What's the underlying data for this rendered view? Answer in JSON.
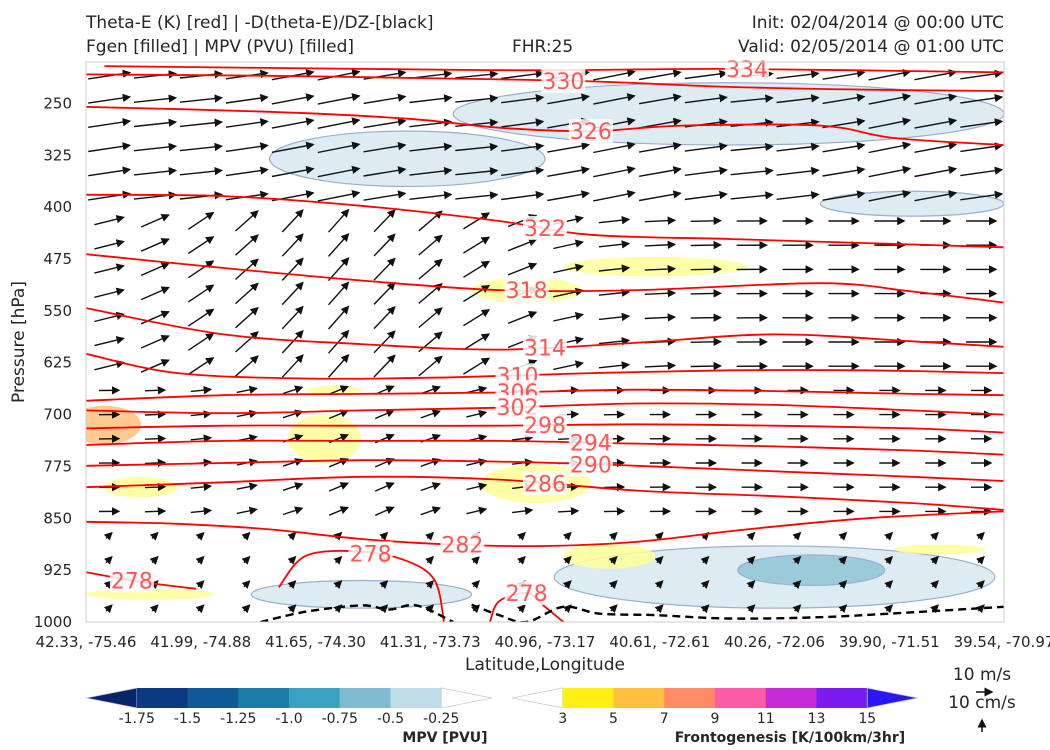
{
  "header": {
    "title_left_1": "Theta-E (K) [red] | -D(theta-E)/DZ-[black]",
    "title_left_2": "Fgen [filled] | MPV (PVU) [filled]",
    "fhr": "FHR:25",
    "init": "Init: 02/04/2014 @ 00:00 UTC",
    "valid": "Valid: 02/05/2014 @ 01:00 UTC"
  },
  "wind_key": {
    "horizontal": "10 m/s",
    "vertical": "10 cm/s"
  },
  "colorbars": {
    "mpv": {
      "title": "MPV [PVU]",
      "ticks": [
        "-1.75",
        "-1.5",
        "-1.25",
        "-1.0",
        "-0.75",
        "-0.5",
        "-0.25"
      ],
      "colors": [
        "#08246b",
        "#0b3a82",
        "#0f5a94",
        "#1b7da6",
        "#3ba1c0",
        "#7fbcd2",
        "#bfdde7",
        "#ffffff"
      ]
    },
    "fgen": {
      "title": "Frontogenesis [K/100km/3hr]",
      "ticks": [
        "3",
        "5",
        "7",
        "9",
        "11",
        "13",
        "15"
      ],
      "colors": [
        "#ffffff",
        "#ffef14",
        "#ffbf3f",
        "#ff8c66",
        "#ff5aa8",
        "#c52bd6",
        "#7a1cf0",
        "#2a17f5"
      ]
    }
  },
  "chart_data": {
    "type": "cross-section",
    "xlabel": "Latitude,Longitude",
    "ylabel": "Pressure [hPa]",
    "x_ticks": [
      "42.33, -75.46",
      "41.99, -74.88",
      "41.65, -74.30",
      "41.31, -73.73",
      "40.96, -73.17",
      "40.61, -72.61",
      "40.26, -72.06",
      "39.90, -71.51",
      "39.54, -70.97"
    ],
    "y_ticks": [
      250,
      325,
      400,
      475,
      550,
      625,
      700,
      775,
      850,
      925,
      1000
    ],
    "ylim": [
      1000,
      190
    ],
    "theta_e_contours": [
      {
        "level": 334,
        "label": "334",
        "label_x": 0.72,
        "points": [
          [
            0.02,
            196
          ],
          [
            0.3,
            200
          ],
          [
            0.5,
            202
          ],
          [
            0.7,
            200
          ],
          [
            1.0,
            205
          ]
        ]
      },
      {
        "level": 330,
        "label": "330",
        "label_x": 0.52,
        "points": [
          [
            0.0,
            208
          ],
          [
            0.2,
            210
          ],
          [
            0.4,
            214
          ],
          [
            0.55,
            218
          ],
          [
            0.7,
            226
          ],
          [
            0.85,
            230
          ],
          [
            1.0,
            232
          ]
        ]
      },
      {
        "level": 326,
        "label": "326",
        "label_x": 0.55,
        "points": [
          [
            0.0,
            255
          ],
          [
            0.2,
            262
          ],
          [
            0.35,
            272
          ],
          [
            0.45,
            285
          ],
          [
            0.55,
            290
          ],
          [
            0.65,
            282
          ],
          [
            0.8,
            282
          ],
          [
            0.88,
            300
          ],
          [
            1.0,
            310
          ]
        ]
      },
      {
        "level": 322,
        "label": "322",
        "label_x": 0.5,
        "points": [
          [
            0.0,
            382
          ],
          [
            0.15,
            384
          ],
          [
            0.3,
            398
          ],
          [
            0.45,
            420
          ],
          [
            0.55,
            440
          ],
          [
            0.7,
            446
          ],
          [
            0.85,
            452
          ],
          [
            1.0,
            458
          ]
        ]
      },
      {
        "level": 318,
        "label": "318",
        "label_x": 0.48,
        "points": [
          [
            0.0,
            468
          ],
          [
            0.15,
            488
          ],
          [
            0.3,
            506
          ],
          [
            0.45,
            520
          ],
          [
            0.6,
            520
          ],
          [
            0.8,
            510
          ],
          [
            0.9,
            522
          ],
          [
            1.0,
            538
          ]
        ]
      },
      {
        "level": 314,
        "label": "314",
        "label_x": 0.5,
        "points": [
          [
            0.0,
            546
          ],
          [
            0.15,
            584
          ],
          [
            0.3,
            598
          ],
          [
            0.45,
            606
          ],
          [
            0.6,
            596
          ],
          [
            0.75,
            584
          ],
          [
            0.9,
            594
          ],
          [
            1.0,
            602
          ]
        ]
      },
      {
        "level": 310,
        "label": "310",
        "label_x": 0.47,
        "points": [
          [
            0.0,
            612
          ],
          [
            0.1,
            640
          ],
          [
            0.25,
            648
          ],
          [
            0.4,
            646
          ],
          [
            0.55,
            640
          ],
          [
            0.7,
            636
          ],
          [
            0.85,
            636
          ],
          [
            1.0,
            640
          ]
        ]
      },
      {
        "level": 306,
        "label": "306",
        "label_x": 0.47,
        "points": [
          [
            0.0,
            680
          ],
          [
            0.15,
            672
          ],
          [
            0.3,
            670
          ],
          [
            0.45,
            668
          ],
          [
            0.6,
            664
          ],
          [
            0.75,
            666
          ],
          [
            0.9,
            670
          ],
          [
            1.0,
            672
          ]
        ]
      },
      {
        "level": 302,
        "label": "302",
        "label_x": 0.47,
        "points": [
          [
            0.0,
            694
          ],
          [
            0.15,
            698
          ],
          [
            0.3,
            694
          ],
          [
            0.45,
            690
          ],
          [
            0.6,
            684
          ],
          [
            0.75,
            686
          ],
          [
            0.9,
            694
          ],
          [
            1.0,
            700
          ]
        ]
      },
      {
        "level": 298,
        "label": "298",
        "label_x": 0.5,
        "points": [
          [
            0.0,
            720
          ],
          [
            0.15,
            716
          ],
          [
            0.3,
            716
          ],
          [
            0.45,
            716
          ],
          [
            0.6,
            714
          ],
          [
            0.75,
            716
          ],
          [
            0.9,
            720
          ],
          [
            1.0,
            726
          ]
        ]
      },
      {
        "level": 294,
        "label": "294",
        "label_x": 0.55,
        "points": [
          [
            0.0,
            744
          ],
          [
            0.15,
            738
          ],
          [
            0.3,
            738
          ],
          [
            0.45,
            738
          ],
          [
            0.6,
            742
          ],
          [
            0.75,
            746
          ],
          [
            0.9,
            752
          ],
          [
            1.0,
            758
          ]
        ]
      },
      {
        "level": 290,
        "label": "290",
        "label_x": 0.55,
        "points": [
          [
            0.0,
            774
          ],
          [
            0.15,
            770
          ],
          [
            0.3,
            766
          ],
          [
            0.45,
            768
          ],
          [
            0.6,
            774
          ],
          [
            0.75,
            782
          ],
          [
            0.9,
            790
          ],
          [
            1.0,
            796
          ]
        ]
      },
      {
        "level": 286,
        "label": "286",
        "label_x": 0.5,
        "points": [
          [
            0.0,
            805
          ],
          [
            0.15,
            798
          ],
          [
            0.3,
            790
          ],
          [
            0.45,
            794
          ],
          [
            0.6,
            810
          ],
          [
            0.75,
            818
          ],
          [
            0.9,
            828
          ],
          [
            1.0,
            838
          ]
        ]
      },
      {
        "level": 282,
        "label": "282",
        "label_x": 0.41,
        "points": [
          [
            0.0,
            855
          ],
          [
            0.1,
            858
          ],
          [
            0.2,
            866
          ],
          [
            0.3,
            880
          ],
          [
            0.4,
            888
          ],
          [
            0.5,
            890
          ],
          [
            0.6,
            884
          ],
          [
            0.72,
            866
          ],
          [
            0.85,
            850
          ],
          [
            1.0,
            840
          ]
        ]
      },
      {
        "level": 278,
        "label": "278",
        "label_x": 0.31,
        "points": [
          [
            0.21,
            950
          ],
          [
            0.24,
            904
          ],
          [
            0.3,
            898
          ],
          [
            0.35,
            912
          ],
          [
            0.38,
            940
          ],
          [
            0.39,
            1000
          ]
        ]
      },
      {
        "level": 278,
        "label": "278",
        "label_x": 0.05,
        "points": [
          [
            0.0,
            928
          ],
          [
            0.06,
            942
          ],
          [
            0.12,
            952
          ]
        ]
      },
      {
        "level": 278,
        "label": "278",
        "label_x": 0.48,
        "points": [
          [
            0.44,
            1000
          ],
          [
            0.45,
            970
          ],
          [
            0.48,
            958
          ],
          [
            0.5,
            978
          ],
          [
            0.52,
            1000
          ]
        ]
      }
    ],
    "fgen_regions": [
      {
        "value": 3,
        "cx": 0.48,
        "cy": 520,
        "rx": 0.06,
        "ry": 18
      },
      {
        "value": 3,
        "cx": 0.62,
        "cy": 486,
        "rx": 0.1,
        "ry": 14
      },
      {
        "value": 3,
        "cx": 0.26,
        "cy": 735,
        "rx": 0.04,
        "ry": 35
      },
      {
        "value": 5,
        "cx": 0.02,
        "cy": 715,
        "rx": 0.04,
        "ry": 28
      },
      {
        "value": 3,
        "cx": 0.49,
        "cy": 800,
        "rx": 0.06,
        "ry": 28
      },
      {
        "value": 3,
        "cx": 0.06,
        "cy": 805,
        "rx": 0.04,
        "ry": 15
      },
      {
        "value": 3,
        "cx": 0.57,
        "cy": 905,
        "rx": 0.05,
        "ry": 18
      },
      {
        "value": 3,
        "cx": 0.93,
        "cy": 895,
        "rx": 0.05,
        "ry": 7
      },
      {
        "value": 3,
        "cx": 0.27,
        "cy": 665,
        "rx": 0.03,
        "ry": 7
      },
      {
        "value": 3,
        "cx": 0.07,
        "cy": 960,
        "rx": 0.07,
        "ry": 8
      }
    ],
    "mpv_regions": [
      {
        "value": -0.25,
        "cx": 0.7,
        "cy": 265,
        "rx": 0.3,
        "ry": 45
      },
      {
        "value": -0.25,
        "cx": 0.35,
        "cy": 330,
        "rx": 0.15,
        "ry": 40
      },
      {
        "value": -0.25,
        "cx": 0.9,
        "cy": 395,
        "rx": 0.1,
        "ry": 18
      },
      {
        "value": -0.25,
        "cx": 0.75,
        "cy": 935,
        "rx": 0.24,
        "ry": 45
      },
      {
        "value": -0.25,
        "cx": 0.3,
        "cy": 960,
        "rx": 0.12,
        "ry": 20
      },
      {
        "value": -0.5,
        "cx": 0.79,
        "cy": 925,
        "rx": 0.08,
        "ry": 22
      }
    ],
    "dthetae_dz_contour": {
      "style": "dashed",
      "points": [
        [
          0.19,
          1000
        ],
        [
          0.24,
          985
        ],
        [
          0.3,
          976
        ],
        [
          0.33,
          982
        ],
        [
          0.36,
          976
        ],
        [
          0.4,
          1000
        ]
      ]
    },
    "dthetae_dz_contour_2": {
      "style": "dashed",
      "points": [
        [
          0.42,
          975
        ],
        [
          0.45,
          990
        ],
        [
          0.48,
          1000
        ],
        [
          0.52,
          978
        ],
        [
          0.56,
          988
        ],
        [
          0.62,
          990
        ],
        [
          0.7,
          995
        ],
        [
          0.8,
          993
        ],
        [
          0.9,
          986
        ],
        [
          1.0,
          978
        ]
      ]
    }
  }
}
